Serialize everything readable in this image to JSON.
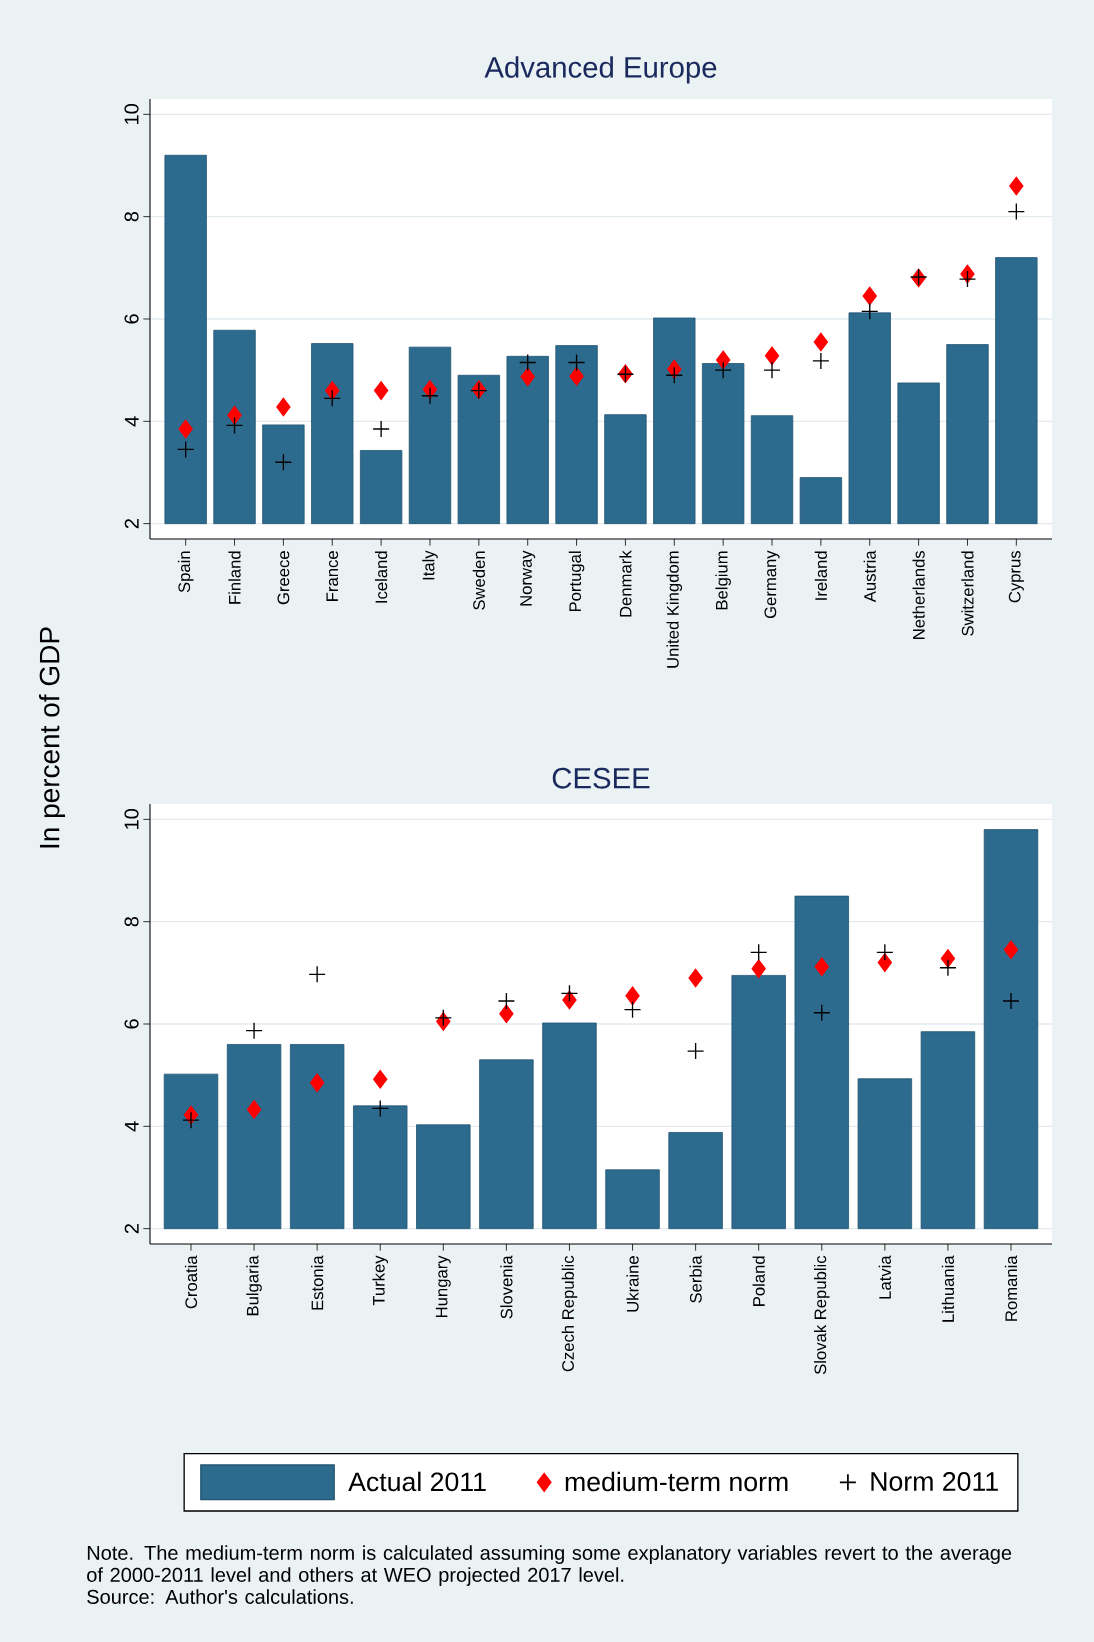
{
  "chart_data": [
    {
      "type": "bar",
      "title": "Advanced Europe",
      "ylabel": "In percent of GDP",
      "categories": [
        "Spain",
        "Finland",
        "Greece",
        "France",
        "Iceland",
        "Italy",
        "Sweden",
        "Norway",
        "Portugal",
        "Denmark",
        "United Kingdom",
        "Belgium",
        "Germany",
        "Ireland",
        "Austria",
        "Netherlands",
        "Switzerland",
        "Cyprus"
      ],
      "series": [
        {
          "color": "#2c6a8e",
          "base": [
            2,
            2,
            2,
            2,
            2,
            2,
            2,
            2,
            2,
            2,
            2,
            2,
            2,
            2,
            2,
            2,
            2,
            2
          ],
          "values": [
            7.2,
            3.78,
            1.93,
            3.52,
            1.43,
            3.45,
            2.9,
            3.27,
            3.48,
            2.13,
            4.02,
            3.13,
            2.11,
            0.9,
            4.12,
            2.75,
            3.5,
            5.2
          ]
        },
        {
          "type": "scatter",
          "marker": "diamond",
          "color": "#ff0000",
          "values": [
            3.85,
            4.12,
            4.28,
            4.6,
            4.6,
            4.62,
            4.62,
            4.87,
            4.88,
            4.93,
            5.02,
            5.2,
            5.28,
            5.55,
            6.45,
            6.8,
            6.88,
            8.6
          ]
        },
        {
          "type": "scatter",
          "marker": "cross",
          "color": "#000000",
          "values": [
            3.45,
            3.92,
            3.2,
            4.45,
            3.85,
            4.5,
            4.6,
            5.15,
            5.15,
            4.92,
            4.9,
            5.0,
            5.0,
            5.18,
            6.15,
            6.82,
            6.78,
            8.1
          ]
        }
      ],
      "ylim": [
        1.7,
        10.3
      ],
      "yticks": [
        2,
        4,
        6,
        8,
        10
      ],
      "grid": "y"
    },
    {
      "type": "bar",
      "title": "CESEE",
      "categories": [
        "Croatia",
        "Bulgaria",
        "Estonia",
        "Turkey",
        "Hungary",
        "Slovenia",
        "Czech Republic",
        "Ukraine",
        "Serbia",
        "Poland",
        "Slovak Republic",
        "Latvia",
        "Lithuania",
        "Romania"
      ],
      "series": [
        {
          "name": "Actual 2011",
          "color": "#2c6a8e",
          "base": [
            2,
            2,
            2,
            2,
            2,
            2,
            2,
            2,
            2,
            2,
            2,
            2,
            2,
            2
          ],
          "values": [
            3.02,
            3.6,
            3.6,
            2.4,
            2.03,
            3.3,
            4.02,
            1.15,
            1.88,
            4.95,
            6.5,
            2.93,
            3.85,
            7.8
          ]
        },
        {
          "type": "scatter",
          "name": "medium-term norm",
          "marker": "diamond",
          "color": "#ff0000",
          "values": [
            4.22,
            4.33,
            4.85,
            4.92,
            6.05,
            6.2,
            6.47,
            6.55,
            6.9,
            7.08,
            7.12,
            7.2,
            7.28,
            7.45
          ]
        },
        {
          "type": "scatter",
          "name": "Norm 2011",
          "marker": "cross",
          "color": "#000000",
          "values": [
            4.12,
            5.87,
            6.97,
            4.35,
            6.12,
            6.45,
            6.6,
            6.28,
            5.47,
            7.4,
            6.22,
            7.4,
            7.1,
            6.45
          ]
        }
      ],
      "ylim": [
        1.7,
        10.3
      ],
      "yticks": [
        2,
        4,
        6,
        8,
        10
      ],
      "grid": "y",
      "legend": "bottom",
      "annotations": [
        "Note. The medium-term norm is calculated assuming some explanatory variables revert to the average of 2000-2011 level and others at WEO projected 2017 level.",
        "Source: Author's calculations."
      ]
    }
  ]
}
